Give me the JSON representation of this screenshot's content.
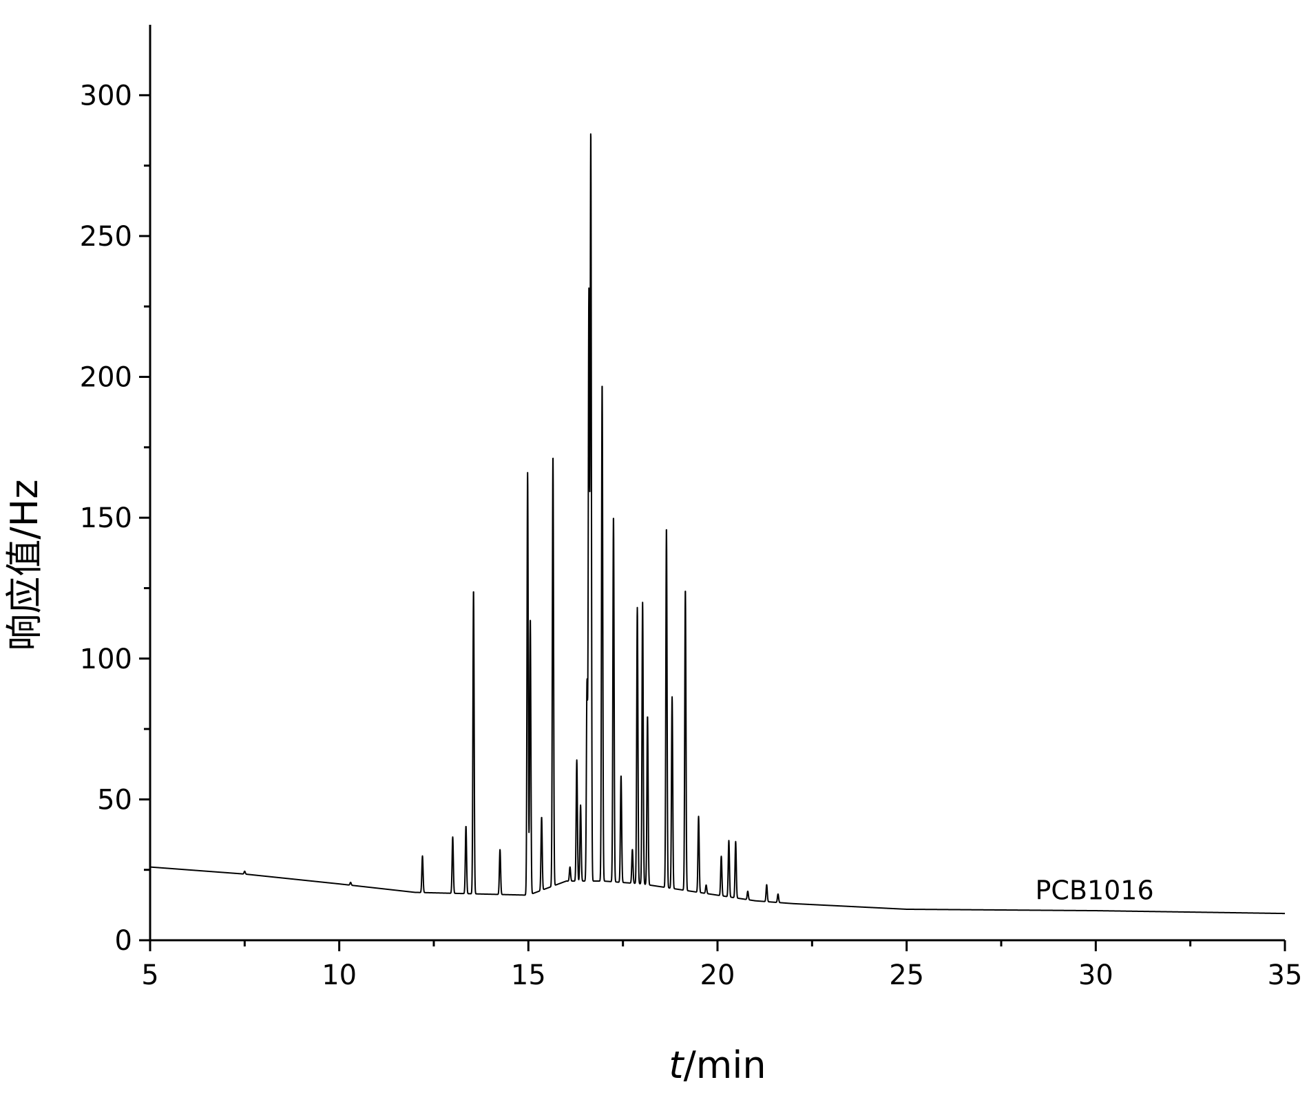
{
  "chart_data": {
    "type": "line",
    "title": "",
    "xlabel_italic": "t",
    "xlabel_rest": "/min",
    "ylabel": "响应值/Hz",
    "xlim": [
      5,
      35
    ],
    "ylim": [
      0,
      325
    ],
    "x_ticks": [
      5,
      10,
      15,
      20,
      25,
      30,
      35
    ],
    "y_ticks": [
      0,
      50,
      100,
      150,
      200,
      250,
      300
    ],
    "grid": false,
    "legend": "none",
    "line_color": "#000000",
    "series": [
      {
        "name": "PCB1016",
        "baseline": [
          [
            5,
            26
          ],
          [
            7.5,
            23.5
          ],
          [
            10,
            20
          ],
          [
            12,
            17
          ],
          [
            13.5,
            16.5
          ],
          [
            15,
            16
          ],
          [
            16,
            21
          ],
          [
            17,
            21
          ],
          [
            18,
            20
          ],
          [
            19,
            18
          ],
          [
            20,
            16
          ],
          [
            21,
            14
          ],
          [
            22,
            13
          ],
          [
            25,
            11
          ],
          [
            30,
            10.5
          ],
          [
            35,
            9.5
          ]
        ],
        "peaks": [
          [
            7.5,
            1
          ],
          [
            10.3,
            1
          ],
          [
            12.2,
            13
          ],
          [
            13.0,
            20
          ],
          [
            13.35,
            24
          ],
          [
            13.55,
            108
          ],
          [
            14.25,
            16
          ],
          [
            14.98,
            150
          ],
          [
            15.05,
            98
          ],
          [
            15.35,
            26
          ],
          [
            15.65,
            153
          ],
          [
            16.1,
            5
          ],
          [
            16.28,
            43
          ],
          [
            16.38,
            27
          ],
          [
            16.55,
            70
          ],
          [
            16.6,
            208
          ],
          [
            16.65,
            265
          ],
          [
            16.95,
            177
          ],
          [
            17.25,
            130
          ],
          [
            17.45,
            38
          ],
          [
            17.75,
            12
          ],
          [
            17.88,
            98
          ],
          [
            18.02,
            100
          ],
          [
            18.15,
            60
          ],
          [
            18.65,
            128
          ],
          [
            18.8,
            68
          ],
          [
            19.15,
            107
          ],
          [
            19.5,
            27
          ],
          [
            19.7,
            3
          ],
          [
            20.1,
            14
          ],
          [
            20.3,
            20
          ],
          [
            20.48,
            20
          ],
          [
            20.8,
            3
          ],
          [
            21.3,
            6
          ],
          [
            21.6,
            3
          ]
        ]
      }
    ]
  }
}
